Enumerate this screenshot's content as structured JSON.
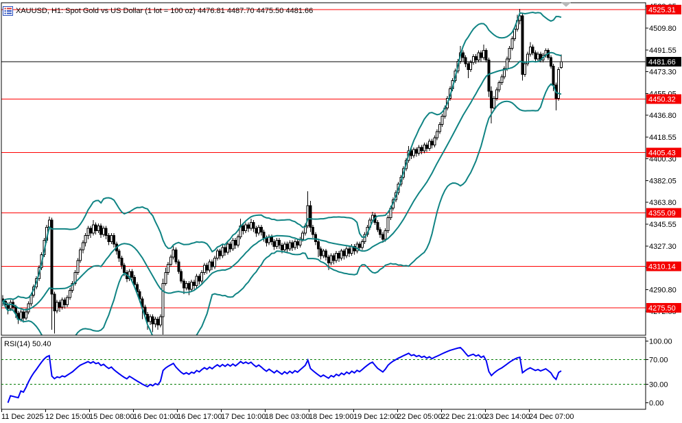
{
  "header": {
    "title": "XAUUSD, H1:  Spot Gold vs US Dollar (1 lot = 100 oz)  4476.81 4487.70 4475.50 4481.66"
  },
  "icons": {
    "chart_list_icon": "chart-list-icon",
    "shift_marker": "chart-shift-marker"
  },
  "colors": {
    "background": "#ffffff",
    "border": "#000000",
    "level_line": "#ff0000",
    "level_badge": "#f40000",
    "price_line": "#000000",
    "price_badge": "#000000",
    "badge_text": "#ffffff",
    "bollinger": "#0f8383",
    "rsi_line": "#0000f4",
    "rsi_level": "#007a00",
    "bull_body": "#ffffff",
    "bear_body": "#000000",
    "candle_outline": "#000000",
    "shift_marker": "#b8b8b8"
  },
  "chart_data": {
    "type": "candlestick",
    "symbol": "XAUUSD",
    "timeframe": "H1",
    "description": "Spot Gold vs US Dollar (1 lot = 100 oz)",
    "last_ohlc": {
      "open": 4476.81,
      "high": 4487.7,
      "low": 4475.5,
      "close": 4481.66
    },
    "price_axis": {
      "min": 4252.5,
      "max": 4531.05,
      "ticks": [
        4528.05,
        4509.8,
        4491.55,
        4473.3,
        4455.05,
        4436.8,
        4418.55,
        4400.3,
        4382.05,
        4363.8,
        4345.55,
        4327.3,
        4309.05,
        4290.8,
        4272.55
      ]
    },
    "time_axis": {
      "labels": [
        "11 Dec 2025",
        "12 Dec 15:00",
        "15 Dec 08:00",
        "16 Dec 01:00",
        "16 Dec 17:00",
        "17 Dec 10:00",
        "18 Dec 03:00",
        "18 Dec 19:00",
        "19 Dec 12:00",
        "22 Dec 05:00",
        "22 Dec 21:00",
        "23 Dec 14:00",
        "24 Dec 07:00"
      ],
      "tick_indices": [
        0,
        17,
        34,
        51,
        68,
        85,
        102,
        119,
        136,
        153,
        170,
        187,
        204
      ]
    },
    "hlines": [
      4525.31,
      4450.32,
      4405.43,
      4355.09,
      4310.14,
      4275.5
    ],
    "price_line": 4481.66,
    "bollinger": {
      "period": 20,
      "deviation": 2
    },
    "rsi": {
      "period": 14,
      "label": "RSI(14) 50.40",
      "value": 50.4,
      "range": [
        0,
        100
      ],
      "levels": [
        100.0,
        70.0,
        30.0,
        0.0
      ],
      "dashed_levels": [
        70,
        30
      ]
    },
    "candles": [
      [
        4283,
        4286,
        4277,
        4281
      ],
      [
        4281,
        4283,
        4275,
        4278
      ],
      [
        4278,
        4280,
        4270,
        4275
      ],
      [
        4275,
        4282,
        4273,
        4280
      ],
      [
        4280,
        4282,
        4273,
        4276
      ],
      [
        4276,
        4278,
        4267,
        4271
      ],
      [
        4271,
        4273,
        4262,
        4266
      ],
      [
        4266,
        4274,
        4264,
        4272
      ],
      [
        4272,
        4274,
        4263,
        4267
      ],
      [
        4267,
        4275,
        4265,
        4272
      ],
      [
        4272,
        4281,
        4270,
        4279
      ],
      [
        4279,
        4288,
        4277,
        4286
      ],
      [
        4286,
        4295,
        4284,
        4293
      ],
      [
        4293,
        4302,
        4291,
        4300
      ],
      [
        4300,
        4311,
        4298,
        4309
      ],
      [
        4309,
        4322,
        4307,
        4320
      ],
      [
        4320,
        4334,
        4318,
        4332
      ],
      [
        4332,
        4345,
        4330,
        4343
      ],
      [
        4343,
        4352,
        4341,
        4349
      ],
      [
        4349,
        4351,
        4257,
        4287
      ],
      [
        4287,
        4289,
        4254,
        4273
      ],
      [
        4273,
        4282,
        4271,
        4280
      ],
      [
        4280,
        4282,
        4272,
        4276
      ],
      [
        4276,
        4284,
        4274,
        4282
      ],
      [
        4282,
        4284,
        4275,
        4278
      ],
      [
        4278,
        4286,
        4276,
        4284
      ],
      [
        4284,
        4292,
        4282,
        4290
      ],
      [
        4290,
        4298,
        4288,
        4296
      ],
      [
        4296,
        4307,
        4294,
        4305
      ],
      [
        4305,
        4317,
        4303,
        4315
      ],
      [
        4315,
        4326,
        4313,
        4324
      ],
      [
        4324,
        4332,
        4321,
        4330
      ],
      [
        4330,
        4338,
        4327,
        4336
      ],
      [
        4336,
        4344,
        4333,
        4342
      ],
      [
        4342,
        4344,
        4334,
        4338
      ],
      [
        4338,
        4349,
        4336,
        4345
      ],
      [
        4345,
        4347,
        4337,
        4340
      ],
      [
        4340,
        4346,
        4338,
        4344
      ],
      [
        4344,
        4346,
        4334,
        4337
      ],
      [
        4337,
        4344,
        4335,
        4342
      ],
      [
        4342,
        4344,
        4333,
        4336
      ],
      [
        4336,
        4338,
        4328,
        4331
      ],
      [
        4331,
        4338,
        4329,
        4336
      ],
      [
        4336,
        4338,
        4326,
        4329
      ],
      [
        4329,
        4331,
        4320,
        4323
      ],
      [
        4323,
        4325,
        4314,
        4317
      ],
      [
        4317,
        4319,
        4308,
        4311
      ],
      [
        4311,
        4313,
        4302,
        4305
      ],
      [
        4305,
        4307,
        4297,
        4300
      ],
      [
        4300,
        4308,
        4298,
        4306
      ],
      [
        4306,
        4308,
        4298,
        4301
      ],
      [
        4301,
        4303,
        4292,
        4295
      ],
      [
        4295,
        4297,
        4286,
        4289
      ],
      [
        4289,
        4291,
        4280,
        4283
      ],
      [
        4283,
        4285,
        4266,
        4276
      ],
      [
        4276,
        4278,
        4267,
        4270
      ],
      [
        4270,
        4272,
        4257,
        4264
      ],
      [
        4264,
        4270,
        4261,
        4268
      ],
      [
        4268,
        4270,
        4255,
        4262
      ],
      [
        4262,
        4268,
        4259,
        4266
      ],
      [
        4266,
        4268,
        4257,
        4261
      ],
      [
        4261,
        4270,
        4259,
        4268
      ],
      [
        4268,
        4300,
        4253,
        4296
      ],
      [
        4296,
        4309,
        4294,
        4305
      ],
      [
        4305,
        4314,
        4303,
        4312
      ],
      [
        4312,
        4320,
        4310,
        4318
      ],
      [
        4318,
        4328,
        4316,
        4324
      ],
      [
        4324,
        4326,
        4312,
        4314
      ],
      [
        4314,
        4316,
        4304,
        4306
      ],
      [
        4306,
        4308,
        4296,
        4298
      ],
      [
        4298,
        4300,
        4287,
        4292
      ],
      [
        4292,
        4298,
        4290,
        4296
      ],
      [
        4296,
        4298,
        4286,
        4291
      ],
      [
        4291,
        4299,
        4289,
        4297
      ],
      [
        4297,
        4299,
        4291,
        4294
      ],
      [
        4294,
        4304,
        4292,
        4302
      ],
      [
        4302,
        4304,
        4295,
        4298
      ],
      [
        4298,
        4307,
        4296,
        4305
      ],
      [
        4305,
        4313,
        4303,
        4311
      ],
      [
        4311,
        4313,
        4304,
        4307
      ],
      [
        4307,
        4316,
        4305,
        4314
      ],
      [
        4314,
        4316,
        4307,
        4310
      ],
      [
        4310,
        4319,
        4308,
        4317
      ],
      [
        4317,
        4325,
        4315,
        4323
      ],
      [
        4323,
        4325,
        4316,
        4319
      ],
      [
        4319,
        4328,
        4317,
        4326
      ],
      [
        4326,
        4328,
        4319,
        4322
      ],
      [
        4322,
        4331,
        4320,
        4329
      ],
      [
        4329,
        4331,
        4322,
        4325
      ],
      [
        4325,
        4334,
        4323,
        4332
      ],
      [
        4332,
        4334,
        4325,
        4328
      ],
      [
        4328,
        4337,
        4326,
        4335
      ],
      [
        4335,
        4350,
        4333,
        4344
      ],
      [
        4344,
        4346,
        4337,
        4340
      ],
      [
        4340,
        4347,
        4338,
        4345
      ],
      [
        4345,
        4347,
        4339,
        4342
      ],
      [
        4342,
        4350,
        4340,
        4347
      ],
      [
        4347,
        4349,
        4339,
        4342
      ],
      [
        4342,
        4344,
        4335,
        4338
      ],
      [
        4338,
        4345,
        4336,
        4343
      ],
      [
        4343,
        4345,
        4336,
        4339
      ],
      [
        4339,
        4341,
        4331,
        4334
      ],
      [
        4334,
        4336,
        4327,
        4330
      ],
      [
        4330,
        4337,
        4328,
        4335
      ],
      [
        4335,
        4337,
        4328,
        4331
      ],
      [
        4331,
        4333,
        4324,
        4327
      ],
      [
        4327,
        4334,
        4325,
        4332
      ],
      [
        4332,
        4334,
        4325,
        4328
      ],
      [
        4328,
        4330,
        4321,
        4324
      ],
      [
        4324,
        4331,
        4322,
        4329
      ],
      [
        4329,
        4331,
        4322,
        4325
      ],
      [
        4325,
        4332,
        4323,
        4330
      ],
      [
        4330,
        4332,
        4323,
        4326
      ],
      [
        4326,
        4333,
        4324,
        4331
      ],
      [
        4331,
        4333,
        4325,
        4328
      ],
      [
        4328,
        4335,
        4326,
        4333
      ],
      [
        4333,
        4340,
        4331,
        4338
      ],
      [
        4338,
        4346,
        4336,
        4344
      ],
      [
        4344,
        4373,
        4342,
        4361
      ],
      [
        4361,
        4365,
        4339,
        4343
      ],
      [
        4343,
        4345,
        4334,
        4337
      ],
      [
        4337,
        4339,
        4328,
        4331
      ],
      [
        4331,
        4333,
        4318,
        4325
      ],
      [
        4325,
        4327,
        4316,
        4319
      ],
      [
        4319,
        4325,
        4317,
        4323
      ],
      [
        4323,
        4325,
        4315,
        4318
      ],
      [
        4318,
        4320,
        4307,
        4313
      ],
      [
        4313,
        4321,
        4311,
        4319
      ],
      [
        4319,
        4321,
        4312,
        4315
      ],
      [
        4315,
        4323,
        4313,
        4321
      ],
      [
        4321,
        4323,
        4314,
        4317
      ],
      [
        4317,
        4325,
        4315,
        4323
      ],
      [
        4323,
        4325,
        4316,
        4319
      ],
      [
        4319,
        4327,
        4317,
        4325
      ],
      [
        4325,
        4327,
        4318,
        4321
      ],
      [
        4321,
        4329,
        4319,
        4327
      ],
      [
        4327,
        4329,
        4320,
        4323
      ],
      [
        4323,
        4331,
        4321,
        4329
      ],
      [
        4329,
        4331,
        4323,
        4326
      ],
      [
        4326,
        4333,
        4324,
        4331
      ],
      [
        4331,
        4339,
        4329,
        4337
      ],
      [
        4337,
        4345,
        4335,
        4343
      ],
      [
        4343,
        4351,
        4341,
        4349
      ],
      [
        4349,
        4356,
        4347,
        4353
      ],
      [
        4353,
        4355,
        4345,
        4347
      ],
      [
        4347,
        4349,
        4339,
        4341
      ],
      [
        4341,
        4343,
        4334,
        4337
      ],
      [
        4337,
        4339,
        4330,
        4333
      ],
      [
        4333,
        4342,
        4331,
        4340
      ],
      [
        4340,
        4353,
        4338,
        4351
      ],
      [
        4351,
        4361,
        4349,
        4359
      ],
      [
        4359,
        4368,
        4357,
        4366
      ],
      [
        4366,
        4374,
        4364,
        4372
      ],
      [
        4372,
        4381,
        4370,
        4379
      ],
      [
        4379,
        4387,
        4377,
        4385
      ],
      [
        4385,
        4394,
        4383,
        4392
      ],
      [
        4392,
        4401,
        4390,
        4399
      ],
      [
        4399,
        4411,
        4397,
        4407
      ],
      [
        4407,
        4409,
        4400,
        4403
      ],
      [
        4403,
        4410,
        4401,
        4408
      ],
      [
        4408,
        4410,
        4402,
        4405
      ],
      [
        4405,
        4412,
        4403,
        4410
      ],
      [
        4410,
        4412,
        4404,
        4407
      ],
      [
        4407,
        4414,
        4405,
        4412
      ],
      [
        4412,
        4414,
        4406,
        4409
      ],
      [
        4409,
        4417,
        4407,
        4415
      ],
      [
        4415,
        4417,
        4409,
        4412
      ],
      [
        4412,
        4420,
        4410,
        4418
      ],
      [
        4418,
        4425,
        4416,
        4423
      ],
      [
        4423,
        4431,
        4421,
        4429
      ],
      [
        4429,
        4438,
        4427,
        4436
      ],
      [
        4436,
        4445,
        4434,
        4443
      ],
      [
        4443,
        4453,
        4441,
        4451
      ],
      [
        4451,
        4461,
        4449,
        4459
      ],
      [
        4459,
        4468,
        4457,
        4466
      ],
      [
        4466,
        4476,
        4464,
        4474
      ],
      [
        4474,
        4484,
        4472,
        4482
      ],
      [
        4482,
        4495,
        4480,
        4489
      ],
      [
        4489,
        4491,
        4482,
        4485
      ],
      [
        4485,
        4487,
        4477,
        4480
      ],
      [
        4480,
        4482,
        4468,
        4475
      ],
      [
        4475,
        4483,
        4473,
        4481
      ],
      [
        4481,
        4488,
        4479,
        4486
      ],
      [
        4486,
        4488,
        4480,
        4483
      ],
      [
        4483,
        4491,
        4481,
        4489
      ],
      [
        4489,
        4491,
        4482,
        4485
      ],
      [
        4485,
        4496,
        4483,
        4491
      ],
      [
        4491,
        4493,
        4481,
        4483
      ],
      [
        4483,
        4485,
        4452,
        4457
      ],
      [
        4457,
        4461,
        4430,
        4443
      ],
      [
        4443,
        4453,
        4441,
        4451
      ],
      [
        4451,
        4460,
        4449,
        4458
      ],
      [
        4458,
        4466,
        4456,
        4464
      ],
      [
        4464,
        4471,
        4462,
        4469
      ],
      [
        4469,
        4478,
        4467,
        4476
      ],
      [
        4476,
        4486,
        4474,
        4484
      ],
      [
        4484,
        4495,
        4482,
        4493
      ],
      [
        4493,
        4503,
        4491,
        4501
      ],
      [
        4501,
        4511,
        4499,
        4509
      ],
      [
        4509,
        4521,
        4507,
        4516
      ],
      [
        4516,
        4526,
        4513,
        4520
      ],
      [
        4520,
        4522,
        4466,
        4471
      ],
      [
        4471,
        4482,
        4469,
        4480
      ],
      [
        4480,
        4490,
        4478,
        4488
      ],
      [
        4488,
        4498,
        4486,
        4494
      ],
      [
        4494,
        4496,
        4487,
        4489
      ],
      [
        4489,
        4491,
        4482,
        4484
      ],
      [
        4484,
        4490,
        4482,
        4488
      ],
      [
        4488,
        4490,
        4481,
        4483
      ],
      [
        4483,
        4489,
        4481,
        4487
      ],
      [
        4487,
        4493,
        4485,
        4491
      ],
      [
        4491,
        4493,
        4483,
        4485
      ],
      [
        4485,
        4487,
        4476,
        4478
      ],
      [
        4478,
        4480,
        4457,
        4462
      ],
      [
        4462,
        4464,
        4441,
        4451
      ],
      [
        4451,
        4477,
        4449,
        4475
      ],
      [
        4476.81,
        4487.7,
        4475.5,
        4481.66
      ]
    ]
  }
}
